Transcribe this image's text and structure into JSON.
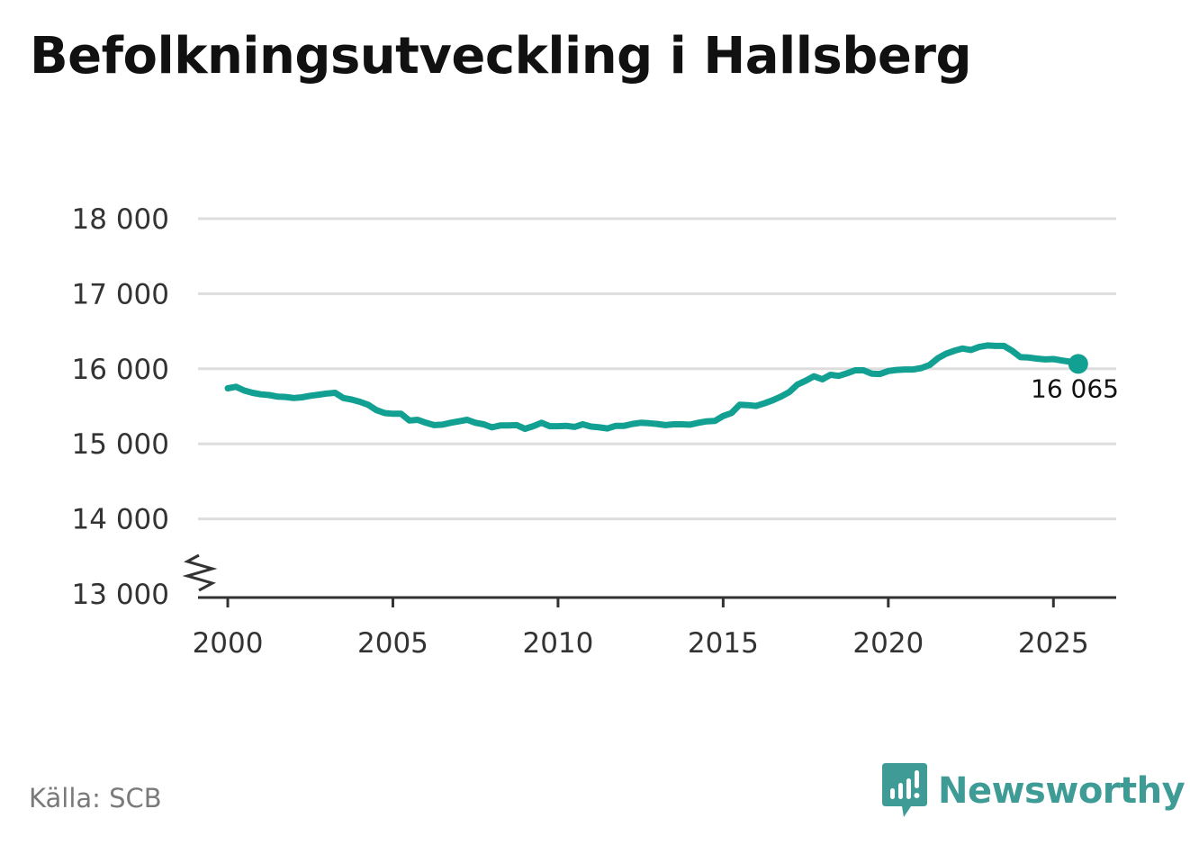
{
  "header": {
    "title": "Befolkningsutveckling i Hallsberg"
  },
  "footer": {
    "source": "Källa: SCB",
    "brand": "Newsworthy"
  },
  "colors": {
    "line": "#11a092",
    "grid": "#dddddd",
    "axis": "#333333",
    "brand": "#3e9b95"
  },
  "chart_data": {
    "type": "line",
    "title": "Befolkningsutveckling i Hallsberg",
    "xlabel": "",
    "ylabel": "",
    "xlim": [
      1999.1,
      2026.9
    ],
    "ylim": [
      13000,
      18000
    ],
    "y_axis_break": true,
    "grid": true,
    "x_ticks": [
      2000,
      2005,
      2010,
      2015,
      2020,
      2025
    ],
    "x_tick_labels": [
      "2000",
      "2005",
      "2010",
      "2015",
      "2020",
      "2025"
    ],
    "y_ticks": [
      13000,
      14000,
      15000,
      16000,
      17000,
      18000
    ],
    "y_tick_labels": [
      "13 000",
      "14 000",
      "15 000",
      "16 000",
      "17 000",
      "18 000"
    ],
    "series": [
      {
        "name": "Hallsberg",
        "x": [
          2000.0,
          2000.25,
          2000.5,
          2000.75,
          2001.0,
          2001.25,
          2001.5,
          2001.75,
          2002.0,
          2002.25,
          2002.5,
          2002.75,
          2003.0,
          2003.25,
          2003.5,
          2003.75,
          2004.0,
          2004.25,
          2004.5,
          2004.75,
          2005.0,
          2005.25,
          2005.5,
          2005.75,
          2006.0,
          2006.25,
          2006.5,
          2006.75,
          2007.0,
          2007.25,
          2007.5,
          2007.75,
          2008.0,
          2008.25,
          2008.5,
          2008.75,
          2009.0,
          2009.25,
          2009.5,
          2009.75,
          2010.0,
          2010.25,
          2010.5,
          2010.75,
          2011.0,
          2011.25,
          2011.5,
          2011.75,
          2012.0,
          2012.25,
          2012.5,
          2012.75,
          2013.0,
          2013.25,
          2013.5,
          2013.75,
          2014.0,
          2014.25,
          2014.5,
          2014.75,
          2015.0,
          2015.25,
          2015.5,
          2015.75,
          2016.0,
          2016.25,
          2016.5,
          2016.75,
          2017.0,
          2017.25,
          2017.5,
          2017.75,
          2018.0,
          2018.25,
          2018.5,
          2018.75,
          2019.0,
          2019.25,
          2019.5,
          2019.75,
          2020.0,
          2020.25,
          2020.5,
          2020.75,
          2021.0,
          2021.25,
          2021.5,
          2021.75,
          2022.0,
          2022.25,
          2022.5,
          2022.75,
          2023.0,
          2023.25,
          2023.5,
          2023.75,
          2024.0,
          2024.25,
          2024.5,
          2024.75,
          2025.0,
          2025.25,
          2025.5,
          2025.75
        ],
        "values": [
          15740,
          15760,
          15710,
          15680,
          15660,
          15650,
          15630,
          15625,
          15610,
          15620,
          15640,
          15655,
          15670,
          15680,
          15610,
          15590,
          15560,
          15520,
          15450,
          15410,
          15400,
          15400,
          15310,
          15320,
          15280,
          15250,
          15255,
          15280,
          15300,
          15320,
          15280,
          15260,
          15220,
          15245,
          15245,
          15250,
          15200,
          15235,
          15280,
          15235,
          15235,
          15240,
          15225,
          15260,
          15230,
          15220,
          15205,
          15240,
          15240,
          15265,
          15280,
          15275,
          15265,
          15250,
          15260,
          15260,
          15255,
          15280,
          15300,
          15305,
          15370,
          15410,
          15520,
          15515,
          15505,
          15540,
          15580,
          15630,
          15690,
          15790,
          15840,
          15900,
          15860,
          15920,
          15905,
          15940,
          15980,
          15980,
          15935,
          15930,
          15970,
          15985,
          15990,
          15990,
          16010,
          16050,
          16140,
          16200,
          16240,
          16270,
          16250,
          16290,
          16310,
          16305,
          16305,
          16240,
          16155,
          16150,
          16135,
          16125,
          16130,
          16110,
          16095,
          16065
        ]
      }
    ],
    "end_label": "16 065"
  }
}
